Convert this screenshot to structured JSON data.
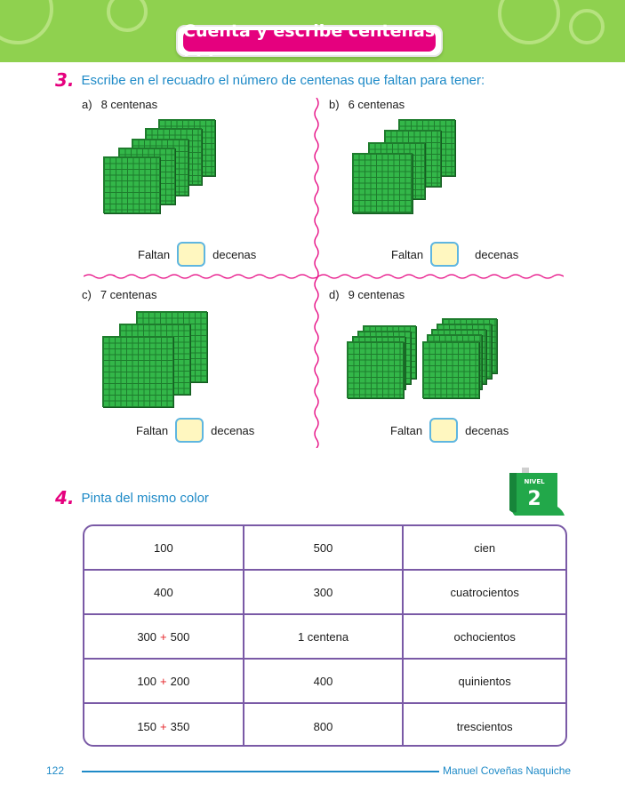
{
  "header": {
    "title": "Cuenta y escribe centenas . . ."
  },
  "q3": {
    "number": "3.",
    "instruction": "Escribe en el recuadro el número de centenas que faltan para tener:",
    "items": [
      {
        "letter": "a)",
        "label": "8 centenas",
        "before": "Faltan",
        "after": "decenas",
        "answer": ""
      },
      {
        "letter": "b)",
        "label": "6 centenas",
        "before": "Faltan",
        "after": "decenas",
        "answer": ""
      },
      {
        "letter": "c)",
        "label": "7 centenas",
        "before": "Faltan",
        "after": "decenas",
        "answer": ""
      },
      {
        "letter": "d)",
        "label": "9 centenas",
        "before": "Faltan",
        "after": "decenas",
        "answer": ""
      }
    ]
  },
  "q4": {
    "number": "4.",
    "instruction": "Pinta del mismo color",
    "badge": {
      "word": "NIVEL",
      "level": "2"
    },
    "rows": [
      [
        {
          "a": "100"
        },
        {
          "a": "500"
        },
        {
          "a": "cien"
        }
      ],
      [
        {
          "a": "400"
        },
        {
          "a": "300"
        },
        {
          "a": "cuatrocientos"
        }
      ],
      [
        {
          "a": "300",
          "op": "+",
          "b": "500"
        },
        {
          "a": "1 centena"
        },
        {
          "a": "ochocientos"
        }
      ],
      [
        {
          "a": "100",
          "op": "+",
          "b": "200"
        },
        {
          "a": "400"
        },
        {
          "a": "quinientos"
        }
      ],
      [
        {
          "a": "150",
          "op": "+",
          "b": "350"
        },
        {
          "a": "800"
        },
        {
          "a": "trescientos"
        }
      ]
    ]
  },
  "footer": {
    "page": "122",
    "author": "Manuel Coveñas Naquiche"
  },
  "colors": {
    "accent_pink": "#e5007e",
    "accent_blue": "#1e8ac7",
    "block_green": "#33b749",
    "table_border": "#7a5aa6",
    "header_green": "#8fd14f"
  }
}
